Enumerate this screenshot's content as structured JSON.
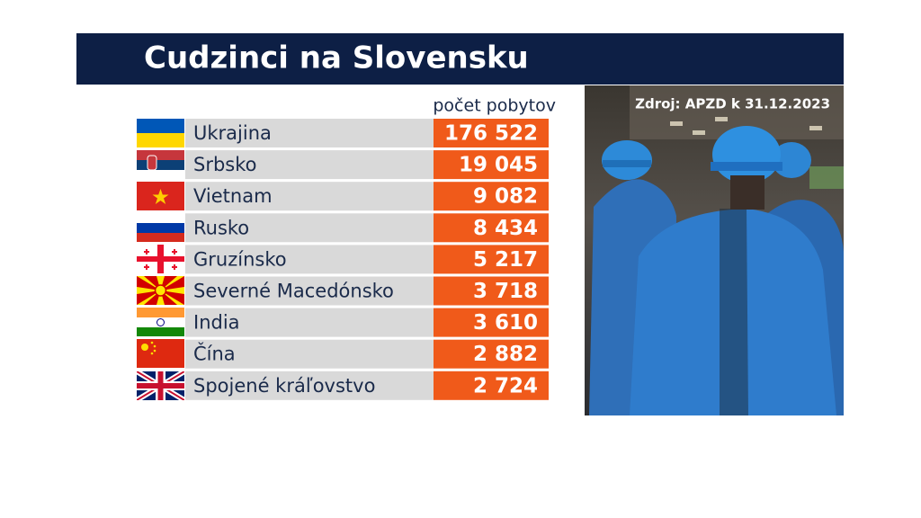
{
  "header": {
    "title": "Cudzinci na Slovensku"
  },
  "table": {
    "column_header": "počet pobytov",
    "rows": [
      [
        "Ukrajina",
        "176 522"
      ],
      [
        "Srbsko",
        "19 045"
      ],
      [
        "Vietnam",
        "9 082"
      ],
      [
        "Rusko",
        "8 434"
      ],
      [
        "Gruzínsko",
        "5 217"
      ],
      [
        "Severné Macedónsko",
        "3 718"
      ],
      [
        "India",
        "3 610"
      ],
      [
        "Čína",
        "2 882"
      ],
      [
        "Spojené kráľovstvo",
        "2 724"
      ]
    ]
  },
  "photo": {
    "caption": "Zdroj: APZD k 31.12.2023"
  }
}
